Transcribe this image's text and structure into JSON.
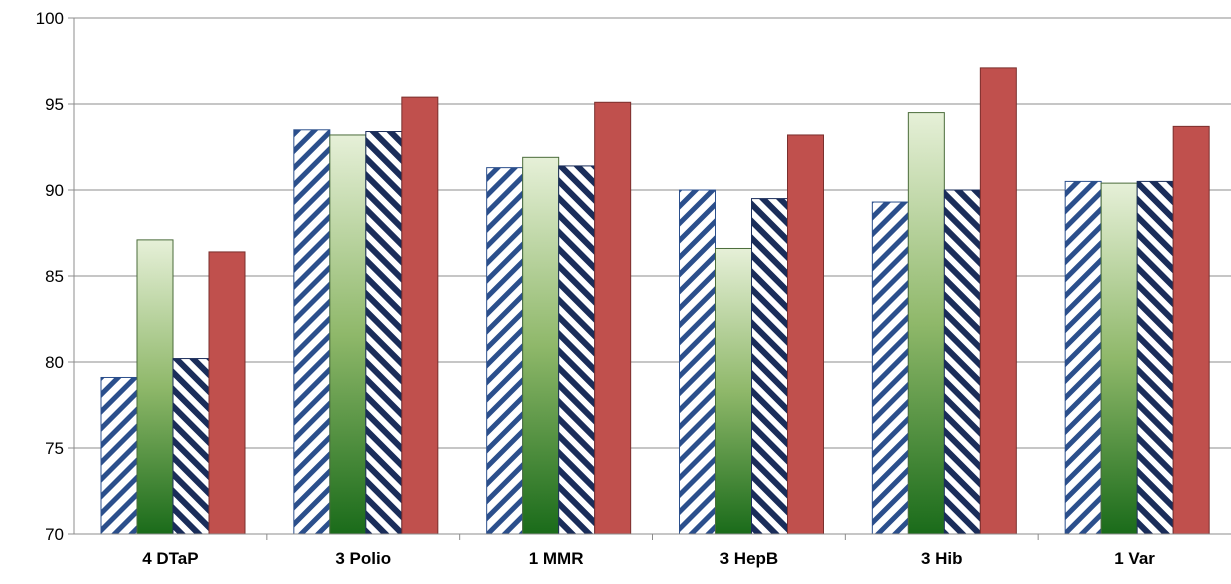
{
  "chart_data": {
    "type": "bar",
    "title": "",
    "xlabel": "",
    "ylabel": "",
    "ylim": [
      70,
      100
    ],
    "yticks": [
      70,
      75,
      80,
      85,
      90,
      95,
      100
    ],
    "grid": true,
    "categories": [
      "4 DTaP",
      "3 Polio",
      "1 MMR",
      "3 HepB",
      "3 Hib",
      "1 Var"
    ],
    "series": [
      {
        "fill": "hatch-light",
        "colors": [
          "#2b4f8c",
          "#ffffff"
        ],
        "values": [
          79.1,
          93.5,
          91.3,
          90.0,
          89.3,
          90.5
        ]
      },
      {
        "fill": "gradient-green",
        "colors": [
          "#e6f0d8",
          "#1a6b1a"
        ],
        "values": [
          87.1,
          93.2,
          91.9,
          86.6,
          94.5,
          90.4
        ]
      },
      {
        "fill": "hatch-dark",
        "colors": [
          "#1a2d5a",
          "#ffffff"
        ],
        "values": [
          80.2,
          93.4,
          91.4,
          89.5,
          90.0,
          90.5
        ]
      },
      {
        "fill": "solid",
        "colors": [
          "#c0504d"
        ],
        "values": [
          86.4,
          95.4,
          95.1,
          93.2,
          97.1,
          93.7
        ]
      }
    ]
  }
}
